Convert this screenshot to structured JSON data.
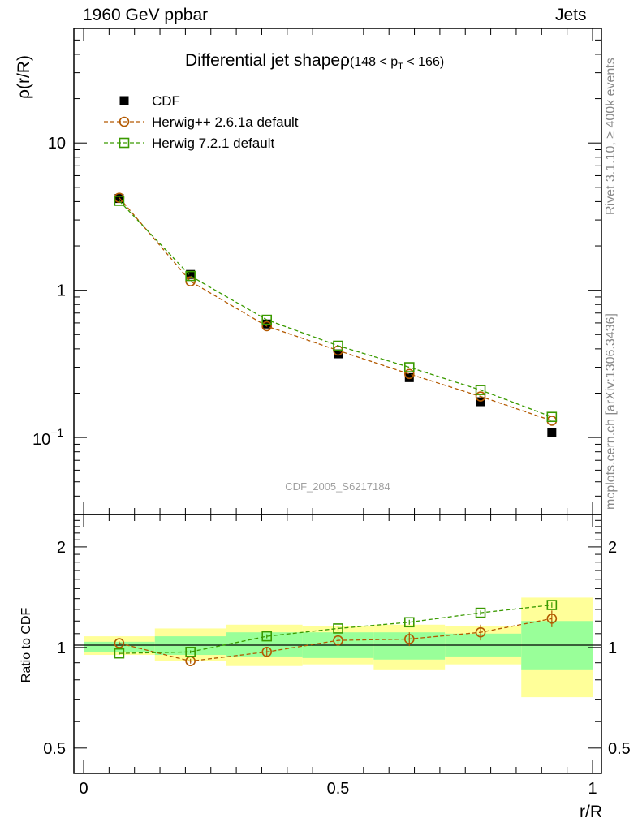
{
  "header": {
    "left": "1960 GeV ppbar",
    "right": "Jets"
  },
  "side_labels": {
    "upper": "Rivet 3.1.10, ≥ 400k events",
    "lower": "mcplots.cern.ch [arXiv:1306.3436]"
  },
  "colors": {
    "cdf": "#000000",
    "herwig_pp": "#b35900",
    "herwig7": "#3a9a00",
    "band_outer": "#ffff99",
    "band_inner": "#99ff99",
    "watermark": "#a0a0a0"
  },
  "chart_data": [
    {
      "type": "scatter",
      "panel": "main",
      "title": "Differential jet shapeρ",
      "title_range": "(148 < p",
      "title_sub": "T",
      "title_end": " < 166)",
      "ylabel": "ρ(r/R)",
      "yscale": "log",
      "ylim": [
        0.03,
        60
      ],
      "xlim": [
        -0.02,
        1.0
      ],
      "y_ticks": [
        10,
        1
      ],
      "y_tick_labels": [
        "10",
        "1"
      ],
      "y_tick_sci": {
        "base": "10",
        "exp": "−1",
        "value": 0.1
      },
      "watermark": "CDF_2005_S6217184",
      "x": [
        0.07,
        0.21,
        0.36,
        0.5,
        0.64,
        0.78,
        0.92
      ],
      "series": [
        {
          "name": "CDF",
          "style": "filled-square",
          "values": [
            4.2,
            1.28,
            0.59,
            0.37,
            0.255,
            0.175,
            0.108
          ]
        },
        {
          "name": "Herwig++ 2.6.1a default",
          "style": "open-circle",
          "values": [
            4.25,
            1.15,
            0.57,
            0.39,
            0.27,
            0.19,
            0.13
          ]
        },
        {
          "name": "Herwig 7.2.1 default",
          "style": "open-square",
          "values": [
            4.05,
            1.25,
            0.63,
            0.42,
            0.3,
            0.21,
            0.138
          ]
        }
      ]
    },
    {
      "type": "scatter",
      "panel": "ratio",
      "ylabel": "Ratio to CDF",
      "xlabel": "r/R",
      "yscale": "log",
      "ylim": [
        0.42,
        2.5
      ],
      "y_ticks": [
        2,
        1,
        0.5
      ],
      "y_tick_labels": [
        "2",
        "1",
        "0.5"
      ],
      "x_ticks": [
        0,
        0.5,
        1
      ],
      "x_tick_labels": [
        "0",
        "0.5",
        "1"
      ],
      "bins": [
        [
          0.0,
          0.14
        ],
        [
          0.14,
          0.28
        ],
        [
          0.28,
          0.43
        ],
        [
          0.43,
          0.57
        ],
        [
          0.57,
          0.71
        ],
        [
          0.71,
          0.86
        ],
        [
          0.86,
          1.0
        ]
      ],
      "band_outer": [
        [
          0.95,
          1.08
        ],
        [
          0.91,
          1.14
        ],
        [
          0.88,
          1.17
        ],
        [
          0.89,
          1.16
        ],
        [
          0.86,
          1.17
        ],
        [
          0.89,
          1.16
        ],
        [
          0.71,
          1.41
        ]
      ],
      "band_inner": [
        [
          0.97,
          1.04
        ],
        [
          0.95,
          1.08
        ],
        [
          0.94,
          1.11
        ],
        [
          0.93,
          1.11
        ],
        [
          0.92,
          1.11
        ],
        [
          0.94,
          1.1
        ],
        [
          0.86,
          1.2
        ]
      ],
      "x": [
        0.07,
        0.21,
        0.36,
        0.5,
        0.64,
        0.78,
        0.92
      ],
      "series": [
        {
          "name": "Herwig++ 2.6.1a default",
          "style": "open-circle",
          "values": [
            1.03,
            0.91,
            0.97,
            1.05,
            1.06,
            1.11,
            1.22
          ],
          "errors": [
            0.012,
            0.015,
            0.035,
            0.04,
            0.05,
            0.06,
            0.07
          ]
        },
        {
          "name": "Herwig 7.2.1 default",
          "style": "open-square",
          "values": [
            0.96,
            0.97,
            1.08,
            1.14,
            1.19,
            1.27,
            1.34
          ],
          "errors": [
            0.008,
            0.01,
            0.015,
            0.015,
            0.02,
            0.02,
            0.025
          ]
        }
      ]
    }
  ]
}
